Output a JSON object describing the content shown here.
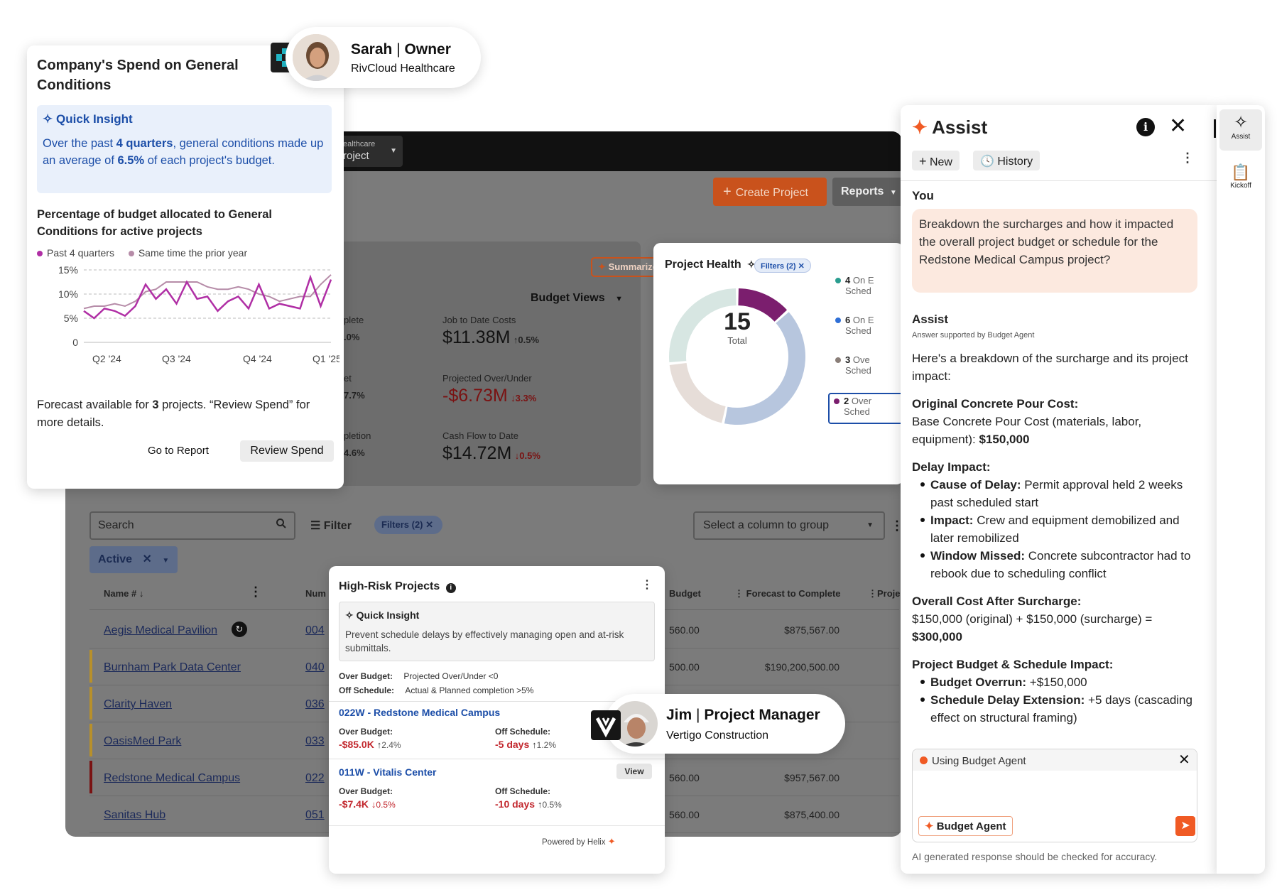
{
  "background": {
    "project_selector": {
      "line1": "ealthcare",
      "line2": "roject"
    },
    "create_project": "Create Project",
    "reports": "Reports",
    "budget": {
      "summarize": "Summarize",
      "budget_views": "Budget Views",
      "left_labels": [
        "plete",
        ".0%",
        "et",
        "7.7%",
        "pletion",
        "4.6%"
      ],
      "job_to_date_label": "Job to Date Costs",
      "job_to_date_value": "$11.38M",
      "job_to_date_change": "0.5%",
      "projected_label": "Projected Over/Under",
      "projected_value": "-$6.73M",
      "projected_change": "3.3%",
      "cashflow_label": "Cash Flow to Date",
      "cashflow_value": "$14.72M",
      "cashflow_change": "0.5%"
    },
    "table": {
      "search_placeholder": "Search",
      "filter_label": "Filter",
      "filters_pill": "Filters (2)",
      "group_select": "Select a column to group",
      "active_pill": "Active",
      "headers": {
        "name": "Name #",
        "num": "Num",
        "budget": "Budget",
        "forecast": "Forecast to Complete",
        "project": "Projec"
      },
      "rows": [
        {
          "name": "Aegis Medical Pavilion",
          "num": "004",
          "budget": "560.00",
          "forecast": "$875,567.00",
          "bar": ""
        },
        {
          "name": "Burnham Park Data Center",
          "num": "040",
          "budget": "500.00",
          "forecast": "$190,200,500.00",
          "bar": "#b8902a"
        },
        {
          "name": "Clarity Haven",
          "num": "036",
          "budget": "",
          "forecast": "",
          "bar": "#b8902a"
        },
        {
          "name": "OasisMed Park",
          "num": "033",
          "budget": "",
          "forecast": "",
          "bar": "#b8902a"
        },
        {
          "name": "Redstone Medical Campus",
          "num": "022",
          "budget": "560.00",
          "forecast": "$957,567.00",
          "bar": "#7a1212"
        },
        {
          "name": "Sanitas Hub",
          "num": "051",
          "budget": "560.00",
          "forecast": "$875,400.00",
          "bar": ""
        }
      ]
    }
  },
  "health": {
    "title": "Project Health",
    "filters": "Filters (2)",
    "total_value": "15",
    "total_label": "Total",
    "legend": [
      {
        "count": "4",
        "text": "On E",
        "sub": "Sched",
        "color": "#2a9d8f"
      },
      {
        "count": "6",
        "text": "On E",
        "sub": "Sched",
        "color": "#2f6fd6"
      },
      {
        "count": "3",
        "text": "Ove",
        "sub": "Sched",
        "color": "#8a7e78"
      },
      {
        "count": "2",
        "text": "Over",
        "sub": "Sched",
        "color": "#7b1e6e"
      }
    ],
    "donut": [
      {
        "value": 4,
        "color": "#d7e6e2"
      },
      {
        "value": 2,
        "color": "#7b1e6e"
      },
      {
        "value": 6,
        "color": "#b7c6de"
      },
      {
        "value": 3,
        "color": "#e6ddd8"
      }
    ]
  },
  "sarah": {
    "name": "Sarah",
    "role": "Owner",
    "company": "RivCloud Healthcare"
  },
  "jim": {
    "name": "Jim",
    "role": "Project Manager",
    "company": "Vertigo Construction"
  },
  "spend": {
    "title": "Company's Spend on General Conditions",
    "insight_title": "Quick Insight",
    "insight_p1": "Over the past ",
    "insight_b1": "4 quarters",
    "insight_p2": ", general conditions made up an average of ",
    "insight_b2": "6.5%",
    "insight_p3": " of each project's budget.",
    "chart_title": "Percentage of budget allocated to General Conditions for active projects",
    "forecast_p1": "Forecast available for ",
    "forecast_b": "3",
    "forecast_p2": " projects. “Review Spend” for more details.",
    "go_to_report": "Go to Report",
    "review_spend": "Review Spend"
  },
  "chart_data": {
    "type": "line",
    "title": "Percentage of budget allocated to General Conditions for active projects",
    "xlabel": "",
    "ylabel": "",
    "ylim": [
      0,
      15
    ],
    "yticks": [
      "15%",
      "10%",
      "5%",
      "0"
    ],
    "xticks": [
      "Q2 '24",
      "Q3 '24",
      "Q4 '24",
      "Q1 '25"
    ],
    "legend_position": "top",
    "grid": true,
    "series": [
      {
        "name": "Past 4 quarters",
        "color": "#b02fa5",
        "values": [
          6.5,
          5,
          7,
          6.5,
          5.5,
          7.5,
          12,
          9,
          11,
          8,
          12.5,
          9,
          9.5,
          6.5,
          8.5,
          9.5,
          7,
          12,
          7,
          8,
          7.5,
          7,
          13.5,
          7.5,
          13
        ]
      },
      {
        "name": "Same time the prior year",
        "color": "#b68ca8",
        "values": [
          7,
          7.5,
          7.5,
          8,
          7.5,
          8.5,
          10.5,
          11,
          12.5,
          12.5,
          12.5,
          12.5,
          11.5,
          11,
          11,
          11.5,
          11,
          10,
          9.5,
          8.5,
          9,
          9.5,
          9.5,
          12,
          14
        ]
      }
    ]
  },
  "risk": {
    "title": "High-Risk Projects",
    "insight_title": "Quick Insight",
    "insight_text": "Prevent schedule delays by effectively managing open and at-risk submittals.",
    "over_budget_label": "Over Budget:",
    "over_budget_rule": "Projected Over/Under <0",
    "off_schedule_label": "Off Schedule:",
    "off_schedule_rule": "Actual & Planned completion >5%",
    "items": [
      {
        "name": "022W - Redstone Medical Campus",
        "ob_label": "Over Budget:",
        "ob_value": "-$85.0K",
        "ob_dir": "↑",
        "ob_change": "2.4%",
        "os_label": "Off Schedule:",
        "os_value": "-5 days",
        "os_dir": "↑",
        "os_change": "1.2%"
      },
      {
        "name": "011W - Vitalis Center",
        "ob_label": "Over Budget:",
        "ob_value": "-$7.4K",
        "ob_dir": "↓",
        "ob_change": "0.5%",
        "os_label": "Off Schedule:",
        "os_value": "-10 days",
        "os_dir": "↑",
        "os_change": "0.5%",
        "view": "View"
      }
    ],
    "powered_by": "Powered by Helix"
  },
  "assist": {
    "title": "Assist",
    "new": "New",
    "history": "History",
    "you_label": "You",
    "question": "Breakdown the surcharges and how it impacted the overall project budget or schedule for the Redstone Medical Campus project?",
    "assist_label": "Assist",
    "supported_by": "Answer supported by Budget Agent",
    "intro": "Here's a breakdown of the surcharge and its project impact:",
    "h1": "Original Concrete Pour Cost:",
    "p1": "Base Concrete Pour Cost (materials, labor, equipment): ",
    "p1b": "$150,000",
    "h2": "Delay Impact:",
    "b1_label": "Cause of Delay:",
    "b1_text": " Permit approval held 2 weeks past scheduled start",
    "b2_label": "Impact:",
    "b2_text": " Crew and equipment demobilized and later remobilized",
    "b3_label": "Window Missed:",
    "b3_text": " Concrete subcontractor had to rebook due to scheduling conflict",
    "h3": "Overall Cost After Surcharge:",
    "p3": "$150,000 (original) + $150,000 (surcharge) = ",
    "p3b": "$300,000",
    "h4": "Project Budget & Schedule Impact:",
    "b4_label": "Budget Overrun:",
    "b4_text": " +$150,000",
    "b5_label": "Schedule Delay Extension:",
    "b5_text": " +5 days (cascading effect on structural framing)",
    "using_agent": "Using Budget Agent",
    "agent_chip": "Budget Agent",
    "disclaimer": "AI generated response should be checked for accuracy."
  },
  "rail": {
    "assist": "Assist",
    "kickoff": "Kickoff"
  },
  "colors": {
    "accent": "#f05a24",
    "link_blue": "#1c4ea8",
    "danger": "#c2272d",
    "insight_bg": "#e9f0fb"
  }
}
